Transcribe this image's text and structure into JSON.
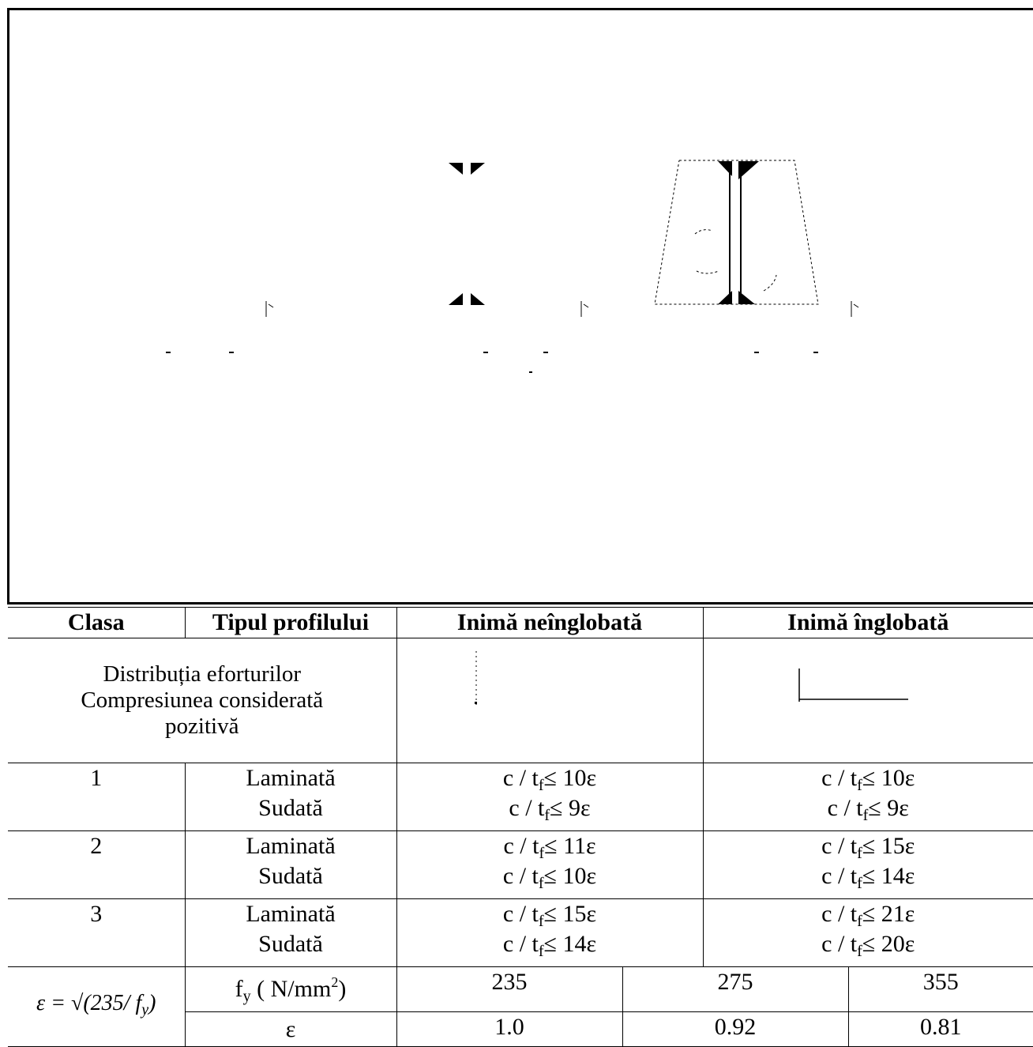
{
  "table": {
    "headers": [
      "Clasa",
      "Tipul profilului",
      "Inimă neînglobată",
      "Inimă înglobată"
    ],
    "distribution_label": [
      "Distribuția eforturilor",
      "Compresiunea considerată",
      "pozitivă"
    ],
    "classes": [
      {
        "clasa": "1",
        "tipuri": [
          "Laminată",
          "Sudată"
        ],
        "neinglobata": [
          [
            "c / t",
            "f",
            "≤ 10ε"
          ],
          [
            "c / t",
            "f",
            "≤ 9ε"
          ]
        ],
        "inglobata": [
          [
            "c / t",
            "f",
            "≤ 10ε"
          ],
          [
            "c / t",
            "f",
            "≤ 9ε"
          ]
        ]
      },
      {
        "clasa": "2",
        "tipuri": [
          "Laminată",
          "Sudată"
        ],
        "neinglobata": [
          [
            "c / t",
            "f",
            "≤ 11ε"
          ],
          [
            "c / t",
            "f",
            "≤ 10ε"
          ]
        ],
        "inglobata": [
          [
            "c / t",
            "f",
            "≤ 15ε"
          ],
          [
            "c / t",
            "f",
            "≤ 14ε"
          ]
        ]
      },
      {
        "clasa": "3",
        "tipuri": [
          "Laminată",
          "Sudată"
        ],
        "neinglobata": [
          [
            "c / t",
            "f",
            "≤ 15ε"
          ],
          [
            "c / t",
            "f",
            "≤ 14ε"
          ]
        ],
        "inglobata": [
          [
            "c / t",
            "f",
            "≤ 21ε"
          ],
          [
            "c / t",
            "f",
            "≤ 20ε"
          ]
        ]
      }
    ],
    "epsilon_formula": "ε = √(235/ f",
    "epsilon_formula_sub": "y",
    "epsilon_formula_close": ")",
    "fy_label": "f",
    "fy_sub": "y",
    "fy_unit_open": "( N/mm",
    "fy_unit_sup": "2",
    "fy_unit_close": ")",
    "fy_values": [
      "235",
      "275",
      "355"
    ],
    "eps_label": "ε",
    "eps_values": [
      "1.0",
      "0.92",
      "0.81"
    ]
  }
}
